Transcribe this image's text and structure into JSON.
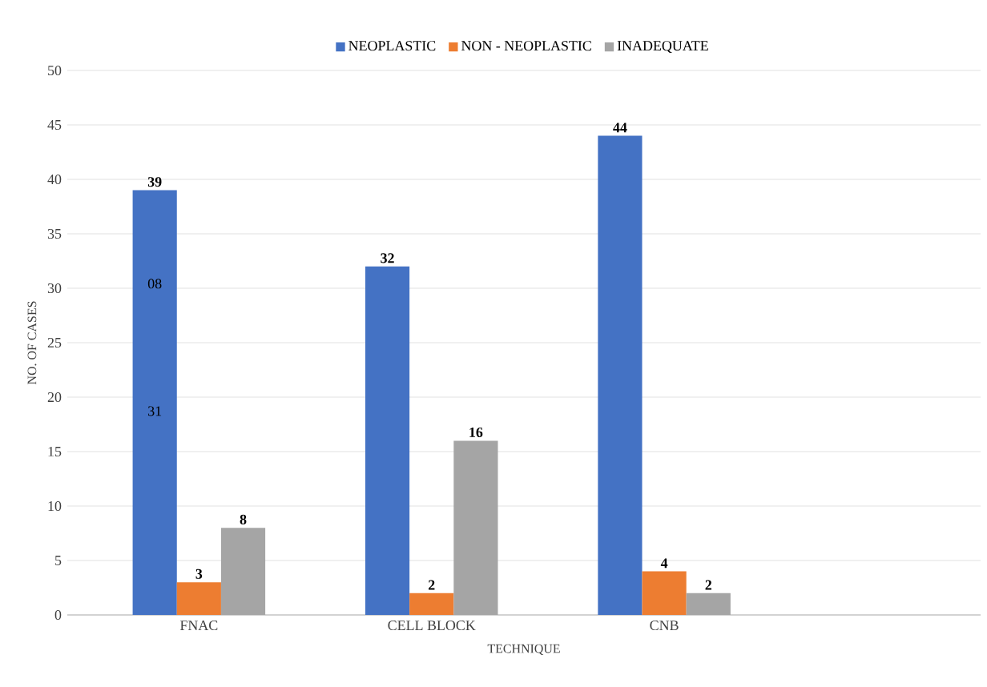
{
  "chart_data": {
    "type": "bar",
    "xlabel": "TECHNIQUE",
    "ylabel": "NO. OF CASES",
    "categories": [
      "FNAC",
      "CELL BLOCK",
      "CNB"
    ],
    "series": [
      {
        "name": "NEOPLASTIC",
        "color": "#4472c4",
        "values": [
          39,
          32,
          44
        ]
      },
      {
        "name": "NON - NEOPLASTIC",
        "color": "#ed7d31",
        "values": [
          3,
          2,
          4
        ]
      },
      {
        "name": "INADEQUATE",
        "color": "#a5a5a5",
        "values": [
          8,
          16,
          2
        ]
      }
    ],
    "ylim": [
      0,
      50
    ],
    "yticks": [
      0,
      5,
      10,
      15,
      20,
      25,
      30,
      35,
      40,
      45,
      50
    ],
    "grid": "y",
    "legend": "top",
    "data_labels": true,
    "annotations": [
      "08",
      "31"
    ]
  }
}
